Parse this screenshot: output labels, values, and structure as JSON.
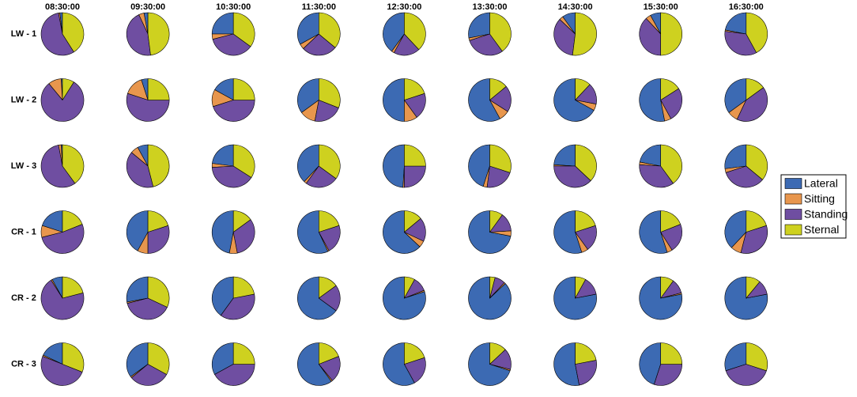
{
  "chart_data": {
    "type": "pie",
    "columns": [
      "08:30:00",
      "09:30:00",
      "10:30:00",
      "11:30:00",
      "12:30:00",
      "13:30:00",
      "14:30:00",
      "15:30:00",
      "16:30:00"
    ],
    "rows": [
      "LW - 1",
      "LW - 2",
      "LW - 3",
      "CR - 1",
      "CR - 2",
      "CR - 3"
    ],
    "categories": [
      "Lateral",
      "Sitting",
      "Standing",
      "Sternal"
    ],
    "colors": [
      "#3c6ab3",
      "#e8964d",
      "#6f4ea1",
      "#ced11f"
    ],
    "values": [
      [
        [
          2,
          1,
          56,
          41
        ],
        [
          3,
          4,
          45,
          48
        ],
        [
          25,
          4,
          36,
          35
        ],
        [
          33,
          4,
          27,
          36
        ],
        [
          40,
          2,
          20,
          38
        ],
        [
          28,
          2,
          30,
          40
        ],
        [
          10,
          3,
          35,
          52
        ],
        [
          8,
          4,
          38,
          50
        ],
        [
          22,
          1,
          35,
          42
        ]
      ],
      [
        [
          1,
          10,
          80,
          9
        ],
        [
          5,
          15,
          55,
          25
        ],
        [
          17,
          13,
          45,
          25
        ],
        [
          35,
          12,
          22,
          31
        ],
        [
          50,
          10,
          20,
          20
        ],
        [
          58,
          8,
          20,
          14
        ],
        [
          67,
          5,
          16,
          12
        ],
        [
          53,
          5,
          26,
          16
        ],
        [
          35,
          8,
          42,
          15
        ]
      ],
      [
        [
          1,
          2,
          57,
          40
        ],
        [
          8,
          6,
          40,
          46
        ],
        [
          23,
          3,
          40,
          34
        ],
        [
          38,
          2,
          25,
          35
        ],
        [
          49,
          1,
          25,
          25
        ],
        [
          45,
          3,
          22,
          30
        ],
        [
          24,
          1,
          38,
          37
        ],
        [
          22,
          2,
          36,
          40
        ],
        [
          27,
          3,
          34,
          36
        ]
      ],
      [
        [
          20,
          9,
          52,
          19
        ],
        [
          42,
          8,
          30,
          20
        ],
        [
          47,
          6,
          32,
          15
        ],
        [
          57,
          1,
          22,
          20
        ],
        [
          63,
          5,
          18,
          14
        ],
        [
          72,
          4,
          14,
          10
        ],
        [
          55,
          5,
          20,
          20
        ],
        [
          55,
          4,
          22,
          19
        ],
        [
          38,
          8,
          34,
          20
        ]
      ],
      [
        [
          8,
          1,
          70,
          21
        ],
        [
          28,
          1,
          39,
          32
        ],
        [
          40,
          0,
          38,
          22
        ],
        [
          65,
          0,
          20,
          15
        ],
        [
          80,
          1,
          11,
          8
        ],
        [
          87,
          1,
          8,
          4
        ],
        [
          78,
          0,
          14,
          8
        ],
        [
          78,
          1,
          11,
          10
        ],
        [
          78,
          0,
          11,
          11
        ]
      ],
      [
        [
          18,
          1,
          50,
          31
        ],
        [
          35,
          1,
          31,
          33
        ],
        [
          33,
          0,
          42,
          25
        ],
        [
          60,
          1,
          20,
          19
        ],
        [
          58,
          0,
          22,
          20
        ],
        [
          70,
          1,
          16,
          13
        ],
        [
          53,
          0,
          25,
          22
        ],
        [
          45,
          0,
          30,
          25
        ],
        [
          30,
          0,
          40,
          30
        ]
      ]
    ]
  }
}
